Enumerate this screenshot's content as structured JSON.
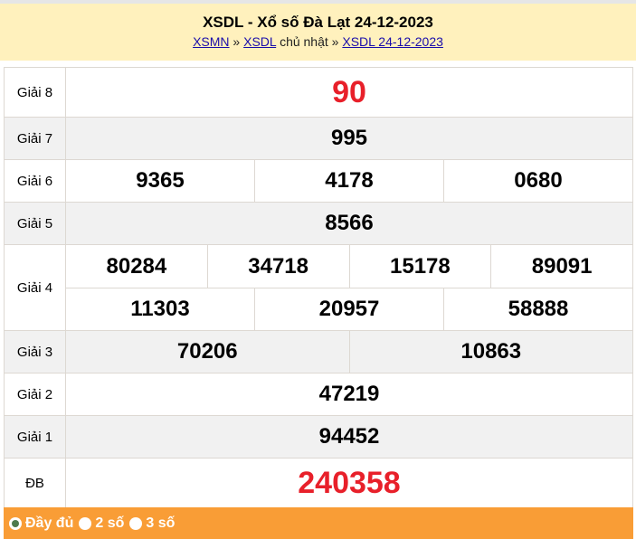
{
  "header": {
    "title": "XSDL - Xổ số Đà Lạt 24-12-2023",
    "crumbs": [
      {
        "label": "XSMN"
      },
      {
        "sep": "»"
      },
      {
        "label": "XSDL"
      },
      {
        "text": "chủ nhật"
      },
      {
        "sep": "»"
      },
      {
        "label": "XSDL 24-12-2023"
      }
    ]
  },
  "prizes": {
    "g8": {
      "label": "Giải 8",
      "numbers": [
        "90"
      ]
    },
    "g7": {
      "label": "Giải 7",
      "numbers": [
        "995"
      ]
    },
    "g6": {
      "label": "Giải 6",
      "numbers": [
        "9365",
        "4178",
        "0680"
      ]
    },
    "g5": {
      "label": "Giải 5",
      "numbers": [
        "8566"
      ]
    },
    "g4": {
      "label": "Giải 4",
      "numbers": [
        "80284",
        "34718",
        "15178",
        "89091",
        "11303",
        "20957",
        "58888"
      ]
    },
    "g3": {
      "label": "Giải 3",
      "numbers": [
        "70206",
        "10863"
      ]
    },
    "g2": {
      "label": "Giải 2",
      "numbers": [
        "47219"
      ]
    },
    "g1": {
      "label": "Giải 1",
      "numbers": [
        "94452"
      ]
    },
    "db": {
      "label": "ĐB",
      "numbers": [
        "240358"
      ]
    }
  },
  "footer": {
    "options": [
      {
        "label": "Đầy đủ",
        "selected": true
      },
      {
        "label": "2 số",
        "selected": false
      },
      {
        "label": "3 số",
        "selected": false
      }
    ]
  },
  "colors": {
    "header_bg": "#fff1bd",
    "footer_bg": "#f99d36",
    "special_red": "#e8202a"
  }
}
